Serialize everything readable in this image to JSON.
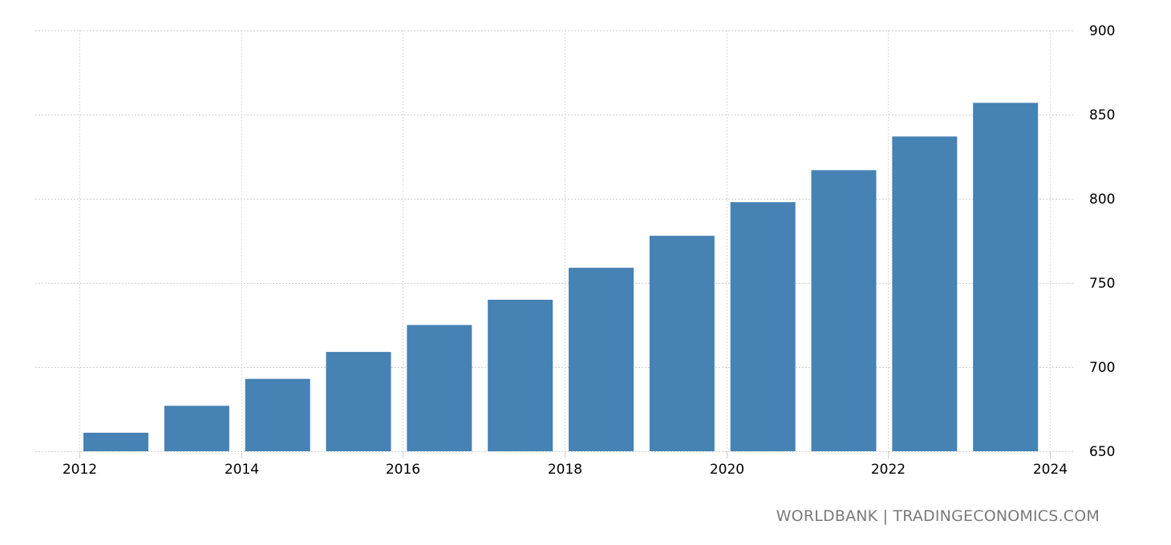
{
  "chart_data": {
    "type": "bar",
    "categories": [
      "2012",
      "2013",
      "2014",
      "2015",
      "2016",
      "2017",
      "2018",
      "2019",
      "2020",
      "2021",
      "2022",
      "2023"
    ],
    "values": [
      661,
      677,
      693,
      709,
      725,
      740,
      759,
      778,
      798,
      817,
      837,
      857
    ],
    "title": "",
    "xlabel": "",
    "ylabel": "",
    "ylim": [
      650,
      900
    ],
    "yticks": [
      650,
      700,
      750,
      800,
      850,
      900
    ],
    "xticks": [
      "2012",
      "2014",
      "2016",
      "2018",
      "2020",
      "2022",
      "2024"
    ],
    "xlim": [
      2011.45,
      2024.3
    ],
    "grid": true,
    "y_axis_side": "right",
    "bar_color": "#4682b4"
  },
  "footer": {
    "source": "WORLDBANK | TRADINGECONOMICS.COM"
  }
}
